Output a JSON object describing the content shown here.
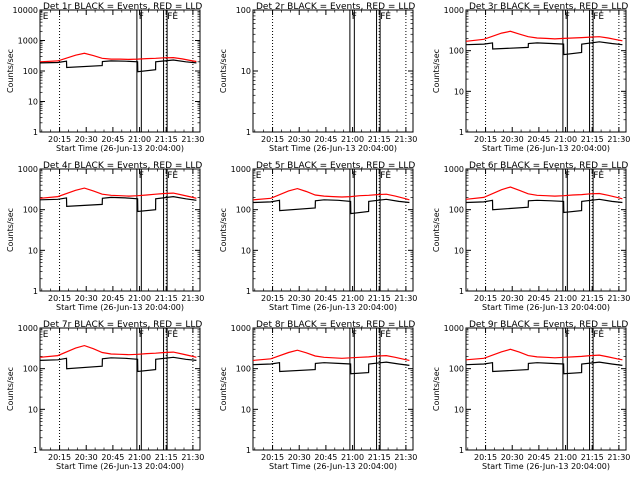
{
  "chart_data": [
    {
      "type": "line",
      "title": "Det 1r BLACK = Events, RED = LLD",
      "xlabel": "Start Time (26-Jun-13 20:04:00)",
      "ylabel": "Counts/sec",
      "xticks": [
        "20:15",
        "20:30",
        "20:45",
        "21:00",
        "21:15",
        "21:30"
      ],
      "ymax": 10000,
      "ytick_labels": [
        "1",
        "10",
        "100",
        "1000",
        "10000"
      ],
      "flags": [
        "E",
        "F",
        "FE"
      ],
      "series": [
        {
          "color": "#ff0000",
          "x": [
            0,
            10,
            20,
            25,
            30,
            35,
            40,
            45,
            50,
            55,
            60,
            65,
            70,
            75,
            80,
            85,
            88
          ],
          "y": [
            200,
            215,
            330,
            380,
            320,
            260,
            245,
            245,
            240,
            245,
            255,
            260,
            270,
            275,
            250,
            220,
            205
          ]
        },
        {
          "color": "#000000",
          "x": [
            0,
            10,
            14.9,
            15,
            35,
            35.1,
            40,
            48,
            54.9,
            55,
            65,
            65.1,
            75,
            82,
            88
          ],
          "y": [
            185,
            190,
            210,
            130,
            150,
            205,
            215,
            210,
            200,
            95,
            110,
            200,
            230,
            200,
            185
          ]
        }
      ]
    },
    {
      "type": "line",
      "title": "Det 2r BLACK = Events, RED = LLD",
      "xlabel": "Start Time (26-Jun-13 20:04:00)",
      "ylabel": "Counts/sec",
      "xticks": [
        "20:15",
        "20:30",
        "20:45",
        "21:00",
        "21:15",
        "21:30"
      ],
      "ymax": 100,
      "ytick_labels": [
        "1",
        "10",
        "100"
      ],
      "flags": [
        "F",
        "FE"
      ],
      "series": []
    },
    {
      "type": "line",
      "title": "Det 3r BLACK = Events, RED = LLD",
      "xlabel": "Start Time (26-Jun-13 20:04:00)",
      "ylabel": "Counts/sec",
      "xticks": [
        "20:15",
        "20:30",
        "20:45",
        "21:00",
        "21:15",
        "21:30"
      ],
      "ymax": 1000,
      "ytick_labels": [
        "1",
        "10",
        "100",
        "1000"
      ],
      "flags": [
        "F",
        "FE"
      ],
      "series": [
        {
          "color": "#ff0000",
          "x": [
            0,
            10,
            20,
            25,
            30,
            35,
            40,
            45,
            50,
            55,
            60,
            65,
            70,
            75,
            80,
            85,
            88
          ],
          "y": [
            170,
            190,
            270,
            300,
            255,
            220,
            205,
            200,
            195,
            200,
            205,
            210,
            215,
            220,
            205,
            185,
            175
          ]
        },
        {
          "color": "#000000",
          "x": [
            0,
            10,
            14.9,
            15,
            35,
            35.1,
            40,
            48,
            54.9,
            55,
            65,
            65.1,
            75,
            82,
            88
          ],
          "y": [
            140,
            145,
            155,
            110,
            120,
            150,
            155,
            150,
            145,
            80,
            90,
            145,
            165,
            150,
            140
          ]
        }
      ]
    },
    {
      "type": "line",
      "title": "Det 4r BLACK = Events, RED = LLD",
      "xlabel": "Start Time (26-Jun-13 20:04:00)",
      "ylabel": "Counts/sec",
      "xticks": [
        "20:15",
        "20:30",
        "20:45",
        "21:00",
        "21:15",
        "21:30"
      ],
      "ymax": 1000,
      "ytick_labels": [
        "1",
        "10",
        "100",
        "1000"
      ],
      "flags": [
        "F",
        "FE"
      ],
      "series": [
        {
          "color": "#ff0000",
          "x": [
            0,
            10,
            20,
            25,
            30,
            35,
            40,
            45,
            50,
            55,
            60,
            65,
            70,
            75,
            80,
            85,
            88
          ],
          "y": [
            190,
            210,
            300,
            340,
            290,
            240,
            225,
            220,
            215,
            220,
            230,
            240,
            250,
            255,
            230,
            205,
            190
          ]
        },
        {
          "color": "#000000",
          "x": [
            0,
            10,
            14.9,
            15,
            35,
            35.1,
            40,
            48,
            54.9,
            55,
            65,
            65.1,
            75,
            82,
            88
          ],
          "y": [
            175,
            180,
            195,
            120,
            135,
            190,
            200,
            195,
            185,
            90,
            100,
            185,
            210,
            185,
            170
          ]
        }
      ]
    },
    {
      "type": "line",
      "title": "Det 5r BLACK = Events, RED = LLD",
      "xlabel": "Start Time (26-Jun-13 20:04:00)",
      "ylabel": "Counts/sec",
      "xticks": [
        "20:15",
        "20:30",
        "20:45",
        "21:00",
        "21:15",
        "21:30"
      ],
      "ymax": 1000,
      "ytick_labels": [
        "1",
        "10",
        "100",
        "1000"
      ],
      "flags": [
        "E",
        "F",
        "FE"
      ],
      "series": [
        {
          "color": "#ff0000",
          "x": [
            0,
            10,
            20,
            25,
            30,
            35,
            40,
            45,
            50,
            55,
            60,
            65,
            70,
            75,
            80,
            85,
            88
          ],
          "y": [
            175,
            190,
            290,
            330,
            280,
            230,
            215,
            210,
            205,
            210,
            220,
            225,
            235,
            240,
            215,
            190,
            175
          ]
        },
        {
          "color": "#000000",
          "x": [
            0,
            10,
            14.9,
            15,
            35,
            35.1,
            40,
            48,
            54.9,
            55,
            65,
            65.1,
            75,
            82,
            88
          ],
          "y": [
            150,
            155,
            170,
            95,
            110,
            165,
            175,
            170,
            160,
            80,
            90,
            160,
            180,
            160,
            150
          ]
        }
      ]
    },
    {
      "type": "line",
      "title": "Det 6r BLACK = Events, RED = LLD",
      "xlabel": "Start Time (26-Jun-13 20:04:00)",
      "ylabel": "Counts/sec",
      "xticks": [
        "20:15",
        "20:30",
        "20:45",
        "21:00",
        "21:15",
        "21:30"
      ],
      "ymax": 1000,
      "ytick_labels": [
        "1",
        "10",
        "100",
        "1000"
      ],
      "flags": [
        "F",
        "FE"
      ],
      "series": [
        {
          "color": "#ff0000",
          "x": [
            0,
            10,
            20,
            25,
            30,
            35,
            40,
            45,
            50,
            55,
            60,
            65,
            70,
            75,
            80,
            85,
            88
          ],
          "y": [
            180,
            200,
            310,
            360,
            300,
            245,
            225,
            220,
            215,
            220,
            230,
            235,
            245,
            250,
            225,
            200,
            185
          ]
        },
        {
          "color": "#000000",
          "x": [
            0,
            10,
            14.9,
            15,
            35,
            35.1,
            40,
            48,
            54.9,
            55,
            65,
            65.1,
            75,
            82,
            88
          ],
          "y": [
            150,
            155,
            170,
            100,
            115,
            165,
            170,
            165,
            160,
            85,
            95,
            160,
            180,
            160,
            150
          ]
        }
      ]
    },
    {
      "type": "line",
      "title": "Det 7r BLACK = Events, RED = LLD",
      "xlabel": "Start Time (26-Jun-13 20:04:00)",
      "ylabel": "Counts/sec",
      "xticks": [
        "20:15",
        "20:30",
        "20:45",
        "21:00",
        "21:15",
        "21:30"
      ],
      "ymax": 1000,
      "ytick_labels": [
        "1",
        "10",
        "100",
        "1000"
      ],
      "flags": [
        "E",
        "F",
        "FE"
      ],
      "series": [
        {
          "color": "#ff0000",
          "x": [
            0,
            10,
            20,
            25,
            30,
            35,
            40,
            45,
            50,
            55,
            60,
            65,
            70,
            75,
            80,
            85,
            88
          ],
          "y": [
            190,
            210,
            320,
            370,
            310,
            250,
            230,
            225,
            220,
            225,
            235,
            240,
            250,
            255,
            230,
            205,
            190
          ]
        },
        {
          "color": "#000000",
          "x": [
            0,
            10,
            14.9,
            15,
            35,
            35.1,
            40,
            48,
            54.9,
            55,
            65,
            65.1,
            75,
            82,
            88
          ],
          "y": [
            160,
            165,
            180,
            100,
            115,
            175,
            185,
            180,
            170,
            85,
            95,
            170,
            190,
            170,
            160
          ]
        }
      ]
    },
    {
      "type": "line",
      "title": "Det 8r BLACK = Events, RED = LLD",
      "xlabel": "Start Time (26-Jun-13 20:04:00)",
      "ylabel": "Counts/sec",
      "xticks": [
        "20:15",
        "20:30",
        "20:45",
        "21:00",
        "21:15",
        "21:30"
      ],
      "ymax": 1000,
      "ytick_labels": [
        "1",
        "10",
        "100",
        "1000"
      ],
      "flags": [
        "F",
        "FE"
      ],
      "series": [
        {
          "color": "#ff0000",
          "x": [
            0,
            10,
            20,
            25,
            30,
            35,
            40,
            45,
            50,
            55,
            60,
            65,
            70,
            75,
            80,
            85,
            88
          ],
          "y": [
            160,
            175,
            250,
            285,
            245,
            205,
            190,
            185,
            180,
            185,
            190,
            195,
            205,
            210,
            190,
            170,
            160
          ]
        },
        {
          "color": "#000000",
          "x": [
            0,
            10,
            14.9,
            15,
            35,
            35.1,
            40,
            48,
            54.9,
            55,
            65,
            65.1,
            75,
            82,
            88
          ],
          "y": [
            125,
            130,
            140,
            85,
            95,
            135,
            140,
            135,
            130,
            75,
            80,
            130,
            145,
            130,
            120
          ]
        }
      ]
    },
    {
      "type": "line",
      "title": "Det 9r BLACK = Events, RED = LLD",
      "xlabel": "Start Time (26-Jun-13 20:04:00)",
      "ylabel": "Counts/sec",
      "xticks": [
        "20:15",
        "20:30",
        "20:45",
        "21:00",
        "21:15",
        "21:30"
      ],
      "ymax": 1000,
      "ytick_labels": [
        "1",
        "10",
        "100",
        "1000"
      ],
      "flags": [
        "F",
        "FE"
      ],
      "series": [
        {
          "color": "#ff0000",
          "x": [
            0,
            10,
            20,
            25,
            30,
            35,
            40,
            45,
            50,
            55,
            60,
            65,
            70,
            75,
            80,
            85,
            88
          ],
          "y": [
            165,
            180,
            260,
            300,
            255,
            210,
            195,
            190,
            185,
            190,
            195,
            200,
            210,
            215,
            195,
            175,
            165
          ]
        },
        {
          "color": "#000000",
          "x": [
            0,
            10,
            14.9,
            15,
            35,
            35.1,
            40,
            48,
            54.9,
            55,
            65,
            65.1,
            75,
            82,
            88
          ],
          "y": [
            125,
            130,
            140,
            85,
            95,
            135,
            140,
            135,
            130,
            75,
            80,
            130,
            145,
            130,
            120
          ]
        }
      ]
    }
  ],
  "markers": {
    "dotted_minutes": [
      11,
      71,
      86
    ],
    "solid_minutes": [
      54.5,
      57,
      69.5,
      71.5
    ]
  }
}
